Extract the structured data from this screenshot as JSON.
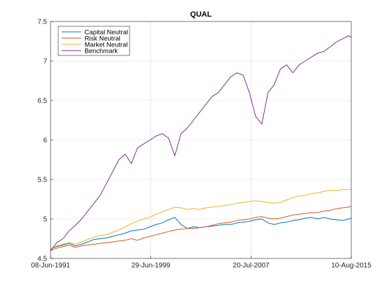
{
  "chart_data": {
    "type": "line",
    "title": "QUAL",
    "xlabel": "",
    "ylabel": "",
    "x_ticks": [
      "08-Jun-1991",
      "29-Jun-1999",
      "20-Jul-2007",
      "10-Aug-2015"
    ],
    "y_ticks": [
      "4.5",
      "5",
      "5.5",
      "6",
      "6.5",
      "7",
      "7.5"
    ],
    "ylim": [
      4.5,
      7.5
    ],
    "grid": true,
    "legend_position": "top-left",
    "series": [
      {
        "name": "Capital Neutral",
        "color": "#0072BD",
        "x": [
          0,
          0.5,
          1,
          1.5,
          2,
          2.5,
          3,
          3.5,
          4,
          4.5,
          5,
          5.5,
          6,
          6.5,
          7,
          7.5,
          8,
          8.5,
          9,
          9.5,
          10,
          10.5,
          11,
          11.5,
          12,
          12.5,
          13,
          13.5,
          14,
          14.5,
          15,
          15.5,
          16,
          16.5,
          17,
          17.5,
          18,
          18.5,
          19,
          19.5,
          20,
          20.5,
          21,
          21.5,
          22,
          22.5,
          23,
          23.5,
          24,
          24.2
        ],
        "values": [
          4.62,
          4.65,
          4.67,
          4.69,
          4.66,
          4.68,
          4.71,
          4.74,
          4.75,
          4.76,
          4.78,
          4.8,
          4.82,
          4.85,
          4.86,
          4.87,
          4.9,
          4.93,
          4.95,
          4.99,
          5.02,
          4.93,
          4.88,
          4.9,
          4.89,
          4.9,
          4.91,
          4.92,
          4.93,
          4.93,
          4.95,
          4.96,
          4.97,
          4.99,
          5.0,
          4.95,
          4.93,
          4.95,
          4.96,
          4.98,
          4.99,
          5.01,
          5.02,
          5.0,
          5.02,
          5.0,
          4.99,
          4.98,
          5.0,
          5.01
        ]
      },
      {
        "name": "Risk Neutral",
        "color": "#D95319",
        "x": [
          0,
          0.5,
          1,
          1.5,
          2,
          2.5,
          3,
          3.5,
          4,
          4.5,
          5,
          5.5,
          6,
          6.5,
          7,
          7.5,
          8,
          8.5,
          9,
          9.5,
          10,
          10.5,
          11,
          11.5,
          12,
          12.5,
          13,
          13.5,
          14,
          14.5,
          15,
          15.5,
          16,
          16.5,
          17,
          17.5,
          18,
          18.5,
          19,
          19.5,
          20,
          20.5,
          21,
          21.5,
          22,
          22.5,
          23,
          23.5,
          24,
          24.2
        ],
        "values": [
          4.6,
          4.63,
          4.65,
          4.67,
          4.64,
          4.66,
          4.67,
          4.68,
          4.69,
          4.7,
          4.71,
          4.72,
          4.73,
          4.75,
          4.73,
          4.76,
          4.78,
          4.8,
          4.82,
          4.84,
          4.86,
          4.87,
          4.88,
          4.88,
          4.89,
          4.9,
          4.92,
          4.94,
          4.95,
          4.96,
          4.98,
          4.99,
          5.0,
          5.02,
          5.03,
          5.01,
          5.0,
          5.01,
          5.03,
          5.05,
          5.06,
          5.07,
          5.08,
          5.08,
          5.1,
          5.11,
          5.13,
          5.14,
          5.15,
          5.16
        ]
      },
      {
        "name": "Market Neutral",
        "color": "#EDB120",
        "x": [
          0,
          0.5,
          1,
          1.5,
          2,
          2.5,
          3,
          3.5,
          4,
          4.5,
          5,
          5.5,
          6,
          6.5,
          7,
          7.5,
          8,
          8.5,
          9,
          9.5,
          10,
          10.5,
          11,
          11.5,
          12,
          12.5,
          13,
          13.5,
          14,
          14.5,
          15,
          15.5,
          16,
          16.5,
          17,
          17.5,
          18,
          18.5,
          19,
          19.5,
          20,
          20.5,
          21,
          21.5,
          22,
          22.5,
          23,
          23.5,
          24,
          24.2
        ],
        "values": [
          4.62,
          4.66,
          4.68,
          4.7,
          4.68,
          4.71,
          4.74,
          4.77,
          4.79,
          4.8,
          4.83,
          4.86,
          4.9,
          4.94,
          4.97,
          5.0,
          5.02,
          5.06,
          5.09,
          5.12,
          5.15,
          5.14,
          5.12,
          5.13,
          5.12,
          5.14,
          5.15,
          5.16,
          5.17,
          5.18,
          5.2,
          5.21,
          5.22,
          5.23,
          5.22,
          5.21,
          5.2,
          5.21,
          5.24,
          5.27,
          5.29,
          5.3,
          5.32,
          5.33,
          5.35,
          5.36,
          5.36,
          5.37,
          5.37,
          5.38
        ]
      },
      {
        "name": "Benchmark",
        "color": "#7E2F8E",
        "x": [
          0,
          0.5,
          1,
          1.5,
          2,
          2.5,
          3,
          3.5,
          4,
          4.5,
          5,
          5.5,
          6,
          6.5,
          7,
          7.5,
          8,
          8.5,
          9,
          9.5,
          10,
          10.5,
          11,
          11.5,
          12,
          12.5,
          13,
          13.5,
          14,
          14.5,
          15,
          15.5,
          16,
          16.5,
          17,
          17.5,
          18,
          18.5,
          19,
          19.5,
          20,
          20.5,
          21,
          21.5,
          22,
          22.5,
          23,
          23.5,
          24,
          24.2
        ],
        "values": [
          4.6,
          4.7,
          4.75,
          4.85,
          4.92,
          5.0,
          5.1,
          5.2,
          5.3,
          5.45,
          5.6,
          5.75,
          5.82,
          5.7,
          5.9,
          5.95,
          6.0,
          6.05,
          6.08,
          6.02,
          5.8,
          6.08,
          6.15,
          6.25,
          6.35,
          6.45,
          6.55,
          6.6,
          6.7,
          6.8,
          6.85,
          6.82,
          6.6,
          6.3,
          6.2,
          6.6,
          6.7,
          6.9,
          6.95,
          6.85,
          6.95,
          7.0,
          7.05,
          7.1,
          7.12,
          7.18,
          7.24,
          7.28,
          7.32,
          7.3
        ]
      }
    ],
    "xlim": [
      0,
      24.2
    ]
  }
}
